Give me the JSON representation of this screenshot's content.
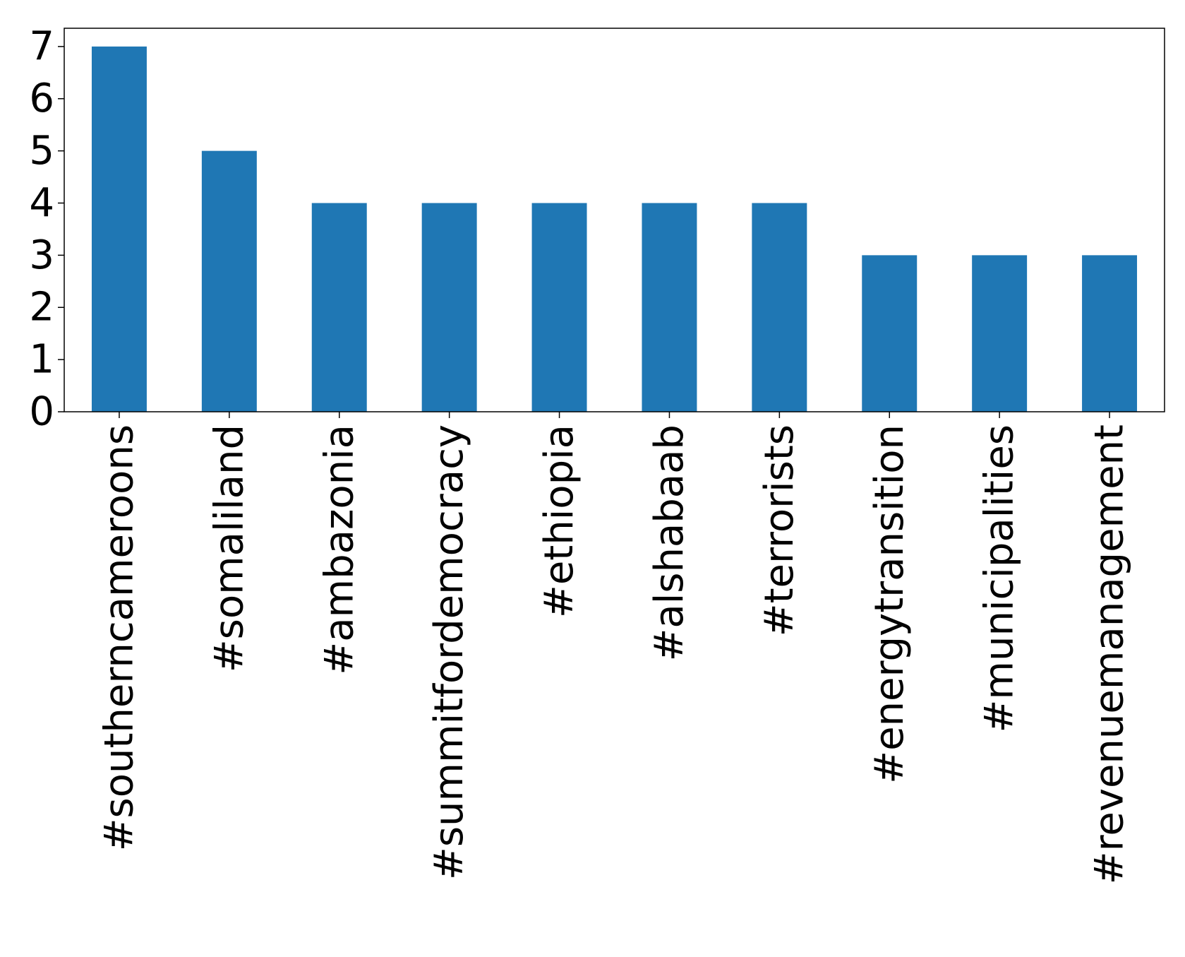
{
  "chart_data": {
    "type": "bar",
    "categories": [
      "#southerncameroons",
      "#somaliland",
      "#ambazonia",
      "#summitfordemocracy",
      "#ethiopia",
      "#alshabaab",
      "#terrorists",
      "#energytransition",
      "#municipalities",
      "#revenuemanagement"
    ],
    "values": [
      7,
      5,
      4,
      4,
      4,
      4,
      4,
      3,
      3,
      3
    ],
    "title": "",
    "xlabel": "",
    "ylabel": "",
    "ylim": [
      0,
      7.35
    ],
    "yticks": [
      0,
      1,
      2,
      3,
      4,
      5,
      6,
      7
    ],
    "grid": false,
    "colors": {
      "bar": "#1f77b4",
      "axis": "#000000"
    }
  }
}
